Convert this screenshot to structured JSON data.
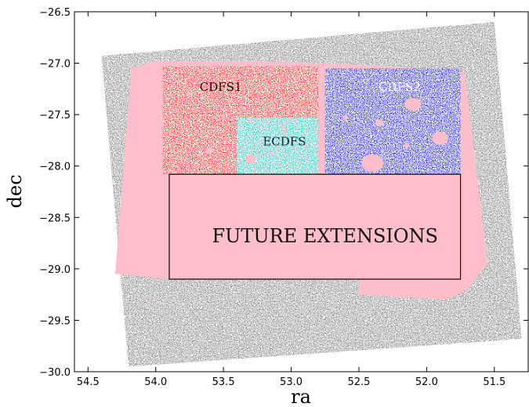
{
  "chart_data": {
    "type": "scatter",
    "xlabel": "ra",
    "ylabel": "dec",
    "xlim": [
      54.6,
      51.25
    ],
    "ylim": [
      -30.0,
      -26.5
    ],
    "x_inverted": true,
    "xticks": [
      54.5,
      54.0,
      53.5,
      53.0,
      52.5,
      52.0,
      51.5
    ],
    "xtick_labels": [
      "54.5",
      "54.0",
      "53.5",
      "53.0",
      "52.5",
      "52.0",
      "51.5"
    ],
    "yticks": [
      -26.5,
      -27.0,
      -27.5,
      -28.0,
      -28.5,
      -29.0,
      -29.5,
      -30.0
    ],
    "ytick_labels": [
      "−26.5",
      "−27.0",
      "−27.5",
      "−28.0",
      "−28.5",
      "−29.0",
      "−29.5",
      "−30.0"
    ],
    "grid": false,
    "colors": {
      "footprint": "#7f7f7f",
      "pink": "#ffbfca",
      "cdfs1": "#ff1a1a",
      "cdfs2": "#1717e0",
      "ecdfs": "#26c4c0",
      "outline": "#000000"
    },
    "regions": [
      {
        "name": "footprint",
        "label": "",
        "color": "#7f7f7f",
        "polygon": [
          [
            54.4,
            -26.93
          ],
          [
            51.5,
            -26.6
          ],
          [
            51.3,
            -29.68
          ],
          [
            54.2,
            -29.95
          ]
        ]
      },
      {
        "name": "pink-tiles",
        "label": "",
        "color": "#ffbfca",
        "polygon": [
          [
            54.18,
            -27.05
          ],
          [
            54.3,
            -29.05
          ],
          [
            53.9,
            -29.1
          ],
          [
            52.5,
            -29.1
          ],
          [
            52.5,
            -29.25
          ],
          [
            51.85,
            -29.3
          ],
          [
            51.7,
            -29.2
          ],
          [
            51.55,
            -28.95
          ],
          [
            51.72,
            -27.08
          ],
          [
            52.4,
            -27.02
          ],
          [
            53.2,
            -26.98
          ],
          [
            54.0,
            -26.98
          ]
        ]
      },
      {
        "name": "cdfs1",
        "label": "CDFS1",
        "color": "#ff1a1a",
        "rect": {
          "ra": [
            53.95,
            52.8
          ],
          "dec": [
            -28.08,
            -27.03
          ]
        }
      },
      {
        "name": "cdfs2",
        "label": "CDFS2",
        "color": "#1717e0",
        "rect": {
          "ra": [
            52.75,
            51.75
          ],
          "dec": [
            -28.08,
            -27.05
          ]
        }
      },
      {
        "name": "ecdfs",
        "label": "ECDFS",
        "color": "#26c4c0",
        "rect": {
          "ra": [
            53.4,
            52.8
          ],
          "dec": [
            -28.08,
            -27.53
          ]
        }
      }
    ],
    "outline_box": {
      "label": "FUTURE EXTENSIONS",
      "ra": [
        53.9,
        51.75
      ],
      "dec": [
        -29.1,
        -28.08
      ]
    },
    "holes": [
      {
        "ra": 52.1,
        "dec": -27.4,
        "r": 0.06
      },
      {
        "ra": 51.9,
        "dec": -27.73,
        "r": 0.06
      },
      {
        "ra": 52.4,
        "dec": -27.97,
        "r": 0.08
      },
      {
        "ra": 52.35,
        "dec": -27.58,
        "r": 0.03
      },
      {
        "ra": 52.6,
        "dec": -27.53,
        "r": 0.02
      },
      {
        "ra": 53.6,
        "dec": -27.85,
        "r": 0.03
      },
      {
        "ra": 53.3,
        "dec": -27.93,
        "r": 0.04
      },
      {
        "ra": 53.05,
        "dec": -27.66,
        "r": 0.02
      },
      {
        "ra": 53.75,
        "dec": -27.3,
        "r": 0.02
      },
      {
        "ra": 52.3,
        "dec": -29.0,
        "r": 0.03
      },
      {
        "ra": 54.1,
        "dec": -28.67,
        "r": 0.02
      },
      {
        "ra": 52.15,
        "dec": -27.8,
        "r": 0.02
      }
    ]
  }
}
